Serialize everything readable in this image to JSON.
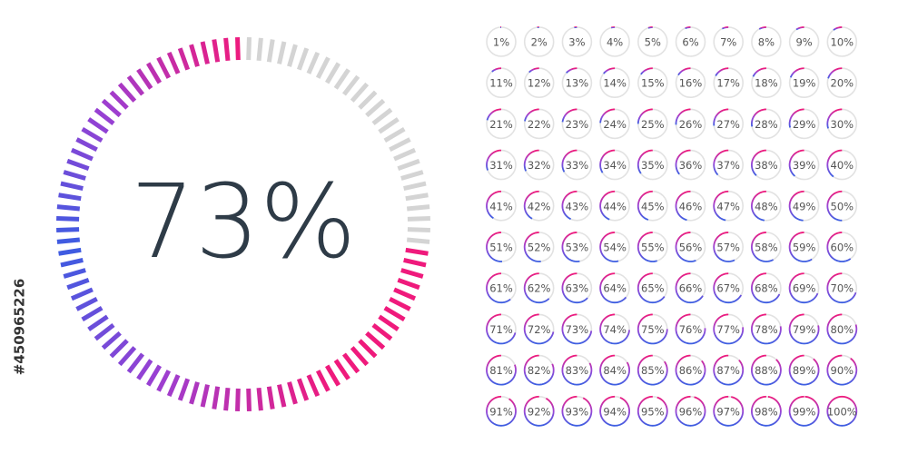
{
  "gauge": {
    "value": 73,
    "label": "73%"
  },
  "stock_id": "#450965226",
  "grid": [
    {
      "value": 1,
      "label": "1%"
    },
    {
      "value": 2,
      "label": "2%"
    },
    {
      "value": 3,
      "label": "3%"
    },
    {
      "value": 4,
      "label": "4%"
    },
    {
      "value": 5,
      "label": "5%"
    },
    {
      "value": 6,
      "label": "6%"
    },
    {
      "value": 7,
      "label": "7%"
    },
    {
      "value": 8,
      "label": "8%"
    },
    {
      "value": 9,
      "label": "9%"
    },
    {
      "value": 10,
      "label": "10%"
    },
    {
      "value": 11,
      "label": "11%"
    },
    {
      "value": 12,
      "label": "12%"
    },
    {
      "value": 13,
      "label": "13%"
    },
    {
      "value": 14,
      "label": "14%"
    },
    {
      "value": 15,
      "label": "15%"
    },
    {
      "value": 16,
      "label": "16%"
    },
    {
      "value": 17,
      "label": "17%"
    },
    {
      "value": 18,
      "label": "18%"
    },
    {
      "value": 19,
      "label": "19%"
    },
    {
      "value": 20,
      "label": "20%"
    },
    {
      "value": 21,
      "label": "21%"
    },
    {
      "value": 22,
      "label": "22%"
    },
    {
      "value": 23,
      "label": "23%"
    },
    {
      "value": 24,
      "label": "24%"
    },
    {
      "value": 25,
      "label": "25%"
    },
    {
      "value": 26,
      "label": "26%"
    },
    {
      "value": 27,
      "label": "27%"
    },
    {
      "value": 28,
      "label": "28%"
    },
    {
      "value": 29,
      "label": "29%"
    },
    {
      "value": 30,
      "label": "30%"
    },
    {
      "value": 31,
      "label": "31%"
    },
    {
      "value": 32,
      "label": "32%"
    },
    {
      "value": 33,
      "label": "33%"
    },
    {
      "value": 34,
      "label": "34%"
    },
    {
      "value": 35,
      "label": "35%"
    },
    {
      "value": 36,
      "label": "36%"
    },
    {
      "value": 37,
      "label": "37%"
    },
    {
      "value": 38,
      "label": "38%"
    },
    {
      "value": 39,
      "label": "39%"
    },
    {
      "value": 40,
      "label": "40%"
    },
    {
      "value": 41,
      "label": "41%"
    },
    {
      "value": 42,
      "label": "42%"
    },
    {
      "value": 43,
      "label": "43%"
    },
    {
      "value": 44,
      "label": "44%"
    },
    {
      "value": 45,
      "label": "45%"
    },
    {
      "value": 46,
      "label": "46%"
    },
    {
      "value": 47,
      "label": "47%"
    },
    {
      "value": 48,
      "label": "48%"
    },
    {
      "value": 49,
      "label": "49%"
    },
    {
      "value": 50,
      "label": "50%"
    },
    {
      "value": 51,
      "label": "51%"
    },
    {
      "value": 52,
      "label": "52%"
    },
    {
      "value": 53,
      "label": "53%"
    },
    {
      "value": 54,
      "label": "54%"
    },
    {
      "value": 55,
      "label": "55%"
    },
    {
      "value": 56,
      "label": "56%"
    },
    {
      "value": 57,
      "label": "57%"
    },
    {
      "value": 58,
      "label": "58%"
    },
    {
      "value": 59,
      "label": "59%"
    },
    {
      "value": 60,
      "label": "60%"
    },
    {
      "value": 61,
      "label": "61%"
    },
    {
      "value": 62,
      "label": "62%"
    },
    {
      "value": 63,
      "label": "63%"
    },
    {
      "value": 64,
      "label": "64%"
    },
    {
      "value": 65,
      "label": "65%"
    },
    {
      "value": 66,
      "label": "66%"
    },
    {
      "value": 67,
      "label": "67%"
    },
    {
      "value": 68,
      "label": "68%"
    },
    {
      "value": 69,
      "label": "69%"
    },
    {
      "value": 70,
      "label": "70%"
    },
    {
      "value": 71,
      "label": "71%"
    },
    {
      "value": 72,
      "label": "72%"
    },
    {
      "value": 73,
      "label": "73%"
    },
    {
      "value": 74,
      "label": "74%"
    },
    {
      "value": 75,
      "label": "75%"
    },
    {
      "value": 76,
      "label": "76%"
    },
    {
      "value": 77,
      "label": "77%"
    },
    {
      "value": 78,
      "label": "78%"
    },
    {
      "value": 79,
      "label": "79%"
    },
    {
      "value": 80,
      "label": "80%"
    },
    {
      "value": 81,
      "label": "81%"
    },
    {
      "value": 82,
      "label": "82%"
    },
    {
      "value": 83,
      "label": "83%"
    },
    {
      "value": 84,
      "label": "84%"
    },
    {
      "value": 85,
      "label": "85%"
    },
    {
      "value": 86,
      "label": "86%"
    },
    {
      "value": 87,
      "label": "87%"
    },
    {
      "value": 88,
      "label": "88%"
    },
    {
      "value": 89,
      "label": "89%"
    },
    {
      "value": 90,
      "label": "90%"
    },
    {
      "value": 91,
      "label": "91%"
    },
    {
      "value": 92,
      "label": "92%"
    },
    {
      "value": 93,
      "label": "93%"
    },
    {
      "value": 94,
      "label": "94%"
    },
    {
      "value": 95,
      "label": "95%"
    },
    {
      "value": 96,
      "label": "96%"
    },
    {
      "value": 97,
      "label": "97%"
    },
    {
      "value": 98,
      "label": "98%"
    },
    {
      "value": 99,
      "label": "99%"
    },
    {
      "value": 100,
      "label": "100%"
    }
  ]
}
